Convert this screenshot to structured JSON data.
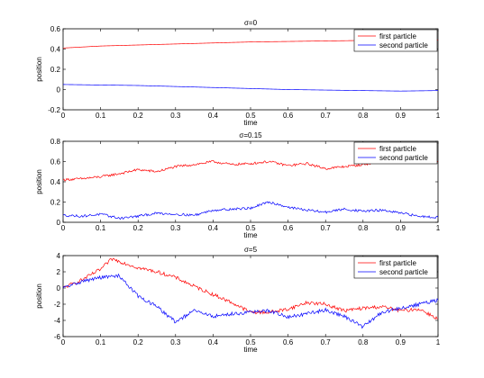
{
  "chart_data": [
    {
      "type": "line",
      "title": "σ=0",
      "xlabel": "time",
      "ylabel": "position",
      "xlim": [
        0,
        1
      ],
      "ylim": [
        -0.2,
        0.6
      ],
      "xticks": [
        "0",
        "0.1",
        "0.2",
        "0.3",
        "0.4",
        "0.5",
        "0.6",
        "0.7",
        "0.8",
        "0.9",
        "1"
      ],
      "yticks": [
        "-0.2",
        "0",
        "0.2",
        "0.4",
        "0.6"
      ],
      "legend_position": "top-right",
      "series": [
        {
          "name": "first particle",
          "color": "#ff0000",
          "x": [
            0,
            0.1,
            0.2,
            0.3,
            0.4,
            0.5,
            0.6,
            0.7,
            0.8,
            0.9,
            1.0
          ],
          "y": [
            0.41,
            0.43,
            0.44,
            0.45,
            0.46,
            0.47,
            0.475,
            0.48,
            0.485,
            0.49,
            0.49
          ]
        },
        {
          "name": "second particle",
          "color": "#0000ff",
          "x": [
            0,
            0.1,
            0.2,
            0.3,
            0.4,
            0.5,
            0.6,
            0.7,
            0.8,
            0.9,
            1.0
          ],
          "y": [
            0.05,
            0.045,
            0.04,
            0.03,
            0.02,
            0.01,
            0.0,
            -0.005,
            -0.01,
            -0.015,
            -0.01
          ]
        }
      ]
    },
    {
      "type": "line",
      "title": "σ=0.15",
      "xlabel": "time",
      "ylabel": "position",
      "xlim": [
        0,
        1
      ],
      "ylim": [
        0,
        0.8
      ],
      "xticks": [
        "0",
        "0.1",
        "0.2",
        "0.3",
        "0.4",
        "0.5",
        "0.6",
        "0.7",
        "0.8",
        "0.9",
        "1"
      ],
      "yticks": [
        "0",
        "0.2",
        "0.4",
        "0.6",
        "0.8"
      ],
      "legend_position": "top-right",
      "series": [
        {
          "name": "first particle",
          "color": "#ff0000",
          "x": [
            0,
            0.05,
            0.1,
            0.15,
            0.2,
            0.25,
            0.3,
            0.35,
            0.4,
            0.45,
            0.5,
            0.55,
            0.6,
            0.65,
            0.7,
            0.75,
            0.8,
            0.85,
            0.9,
            0.95,
            1.0
          ],
          "y": [
            0.42,
            0.43,
            0.45,
            0.48,
            0.52,
            0.5,
            0.55,
            0.57,
            0.6,
            0.57,
            0.58,
            0.6,
            0.56,
            0.58,
            0.53,
            0.55,
            0.57,
            0.6,
            0.61,
            0.6,
            0.6
          ]
        },
        {
          "name": "second particle",
          "color": "#0000ff",
          "x": [
            0,
            0.05,
            0.1,
            0.15,
            0.2,
            0.25,
            0.3,
            0.35,
            0.4,
            0.45,
            0.5,
            0.55,
            0.6,
            0.65,
            0.7,
            0.75,
            0.8,
            0.85,
            0.9,
            0.95,
            1.0
          ],
          "y": [
            0.07,
            0.06,
            0.08,
            0.04,
            0.06,
            0.09,
            0.08,
            0.07,
            0.12,
            0.13,
            0.14,
            0.2,
            0.15,
            0.12,
            0.1,
            0.13,
            0.11,
            0.12,
            0.09,
            0.06,
            0.05
          ]
        }
      ]
    },
    {
      "type": "line",
      "title": "σ=5",
      "xlabel": "time",
      "ylabel": "position",
      "xlim": [
        0,
        1
      ],
      "ylim": [
        -6,
        4
      ],
      "xticks": [
        "0",
        "0.1",
        "0.2",
        "0.3",
        "0.4",
        "0.5",
        "0.6",
        "0.7",
        "0.8",
        "0.9",
        "1"
      ],
      "yticks": [
        "-6",
        "-4",
        "-2",
        "0",
        "2",
        "4"
      ],
      "legend_position": "top-right",
      "series": [
        {
          "name": "first particle",
          "color": "#ff0000",
          "x": [
            0,
            0.05,
            0.1,
            0.13,
            0.2,
            0.25,
            0.3,
            0.35,
            0.4,
            0.45,
            0.5,
            0.55,
            0.6,
            0.65,
            0.7,
            0.75,
            0.8,
            0.85,
            0.9,
            0.95,
            1.0
          ],
          "y": [
            0,
            1.0,
            2.3,
            3.6,
            2.5,
            2.0,
            1.3,
            0.2,
            -0.8,
            -1.8,
            -3.0,
            -3.0,
            -2.6,
            -1.8,
            -2.0,
            -2.8,
            -2.5,
            -2.3,
            -2.8,
            -2.6,
            -3.8
          ]
        },
        {
          "name": "second particle",
          "color": "#0000ff",
          "x": [
            0,
            0.05,
            0.1,
            0.15,
            0.2,
            0.25,
            0.3,
            0.35,
            0.4,
            0.45,
            0.5,
            0.55,
            0.6,
            0.65,
            0.7,
            0.75,
            0.8,
            0.85,
            0.9,
            0.95,
            1.0
          ],
          "y": [
            0,
            0.8,
            1.3,
            1.5,
            -1.0,
            -2.3,
            -4.2,
            -2.8,
            -3.5,
            -3.2,
            -3.0,
            -2.8,
            -3.6,
            -3.2,
            -2.7,
            -3.5,
            -4.8,
            -3.0,
            -2.5,
            -2.0,
            -1.5
          ]
        }
      ]
    }
  ]
}
